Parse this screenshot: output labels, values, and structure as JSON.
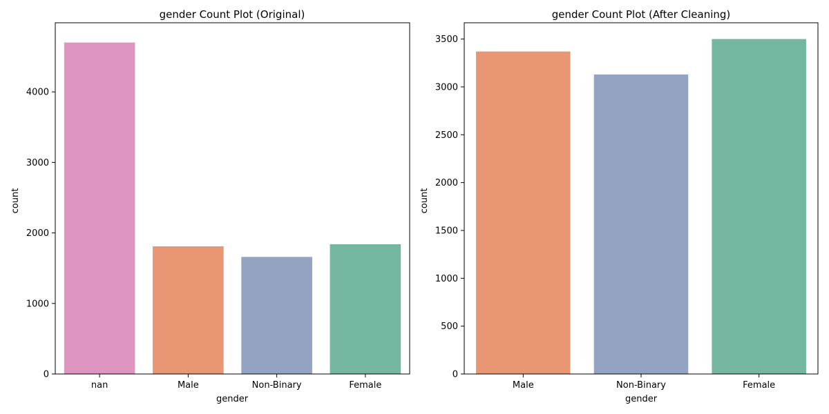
{
  "chart_data": [
    {
      "type": "bar",
      "title": "gender Count Plot (Original)",
      "xlabel": "gender",
      "ylabel": "count",
      "categories": [
        "nan",
        "Male",
        "Non-Binary",
        "Female"
      ],
      "values": [
        4700,
        1810,
        1660,
        1840
      ],
      "colors": [
        "#dd95c0",
        "#e89674",
        "#94a3c2",
        "#74b6a0"
      ],
      "ylim": [
        0,
        4980
      ],
      "yticks": [
        0,
        1000,
        2000,
        3000,
        4000
      ],
      "grid": false
    },
    {
      "type": "bar",
      "title": "gender Count Plot (After Cleaning)",
      "xlabel": "gender",
      "ylabel": "count",
      "categories": [
        "Male",
        "Non-Binary",
        "Female"
      ],
      "values": [
        3370,
        3130,
        3500
      ],
      "colors": [
        "#e89674",
        "#94a3c2",
        "#74b6a0"
      ],
      "ylim": [
        0,
        3670
      ],
      "yticks": [
        0,
        500,
        1000,
        1500,
        2000,
        2500,
        3000,
        3500
      ],
      "grid": false
    }
  ]
}
